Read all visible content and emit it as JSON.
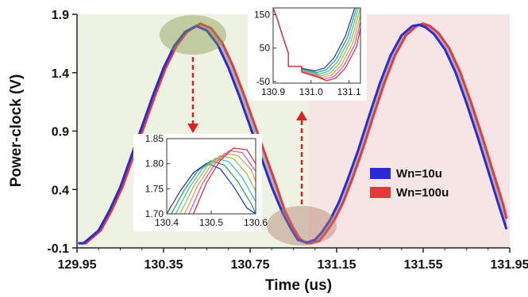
{
  "chart_data": [
    {
      "type": "line",
      "xlabel": "Time (us)",
      "ylabel": "Power-clock (V)",
      "xlim": [
        129.95,
        131.95
      ],
      "ylim": [
        -0.1,
        1.9
      ],
      "xticks": [
        "129.95",
        "130.35",
        "130.75",
        "131.15",
        "131.55",
        "131.95"
      ],
      "yticks": [
        "-0.1",
        "0.4",
        "0.9",
        "1.4",
        "1.9"
      ],
      "background_regions": [
        {
          "x": [
            129.95,
            131.02
          ],
          "color": "#eef2e3"
        },
        {
          "x": [
            131.02,
            131.95
          ],
          "color": "#f7e4e4"
        }
      ],
      "legend": {
        "placement": "center-right"
      },
      "series": [
        {
          "name": "Wn=10u",
          "color": "#2a2ad6",
          "x": [
            129.955,
            129.98,
            130.05,
            130.1,
            130.15,
            130.2,
            130.25,
            130.3,
            130.35,
            130.4,
            130.45,
            130.5,
            130.55,
            130.6,
            130.65,
            130.7,
            130.75,
            130.8,
            130.85,
            130.9,
            130.94,
            130.97,
            131.0,
            131.02,
            131.05,
            131.08,
            131.12,
            131.16,
            131.2,
            131.25,
            131.3,
            131.35,
            131.4,
            131.45,
            131.5,
            131.53,
            131.56,
            131.6,
            131.65,
            131.7,
            131.75,
            131.8,
            131.85,
            131.9,
            131.935
          ],
          "values": [
            -0.06,
            -0.06,
            0.05,
            0.22,
            0.42,
            0.68,
            0.94,
            1.2,
            1.44,
            1.63,
            1.75,
            1.8,
            1.76,
            1.64,
            1.44,
            1.2,
            0.94,
            0.68,
            0.42,
            0.2,
            0.06,
            -0.03,
            -0.05,
            -0.05,
            -0.03,
            0.03,
            0.14,
            0.29,
            0.48,
            0.74,
            1.03,
            1.31,
            1.55,
            1.72,
            1.8,
            1.81,
            1.79,
            1.73,
            1.6,
            1.4,
            1.14,
            0.86,
            0.56,
            0.26,
            0.06
          ]
        },
        {
          "name": "Wn=100u",
          "color": "#e23a3a",
          "x": [
            129.955,
            129.99,
            130.06,
            130.11,
            130.16,
            130.21,
            130.26,
            130.31,
            130.36,
            130.41,
            130.46,
            130.52,
            130.57,
            130.62,
            130.67,
            130.72,
            130.77,
            130.82,
            130.87,
            130.91,
            130.95,
            130.98,
            131.01,
            131.03,
            131.07,
            131.1,
            131.14,
            131.18,
            131.22,
            131.27,
            131.32,
            131.37,
            131.42,
            131.47,
            131.52,
            131.55,
            131.58,
            131.62,
            131.67,
            131.72,
            131.77,
            131.82,
            131.87,
            131.92,
            131.935
          ],
          "values": [
            -0.06,
            -0.06,
            0.05,
            0.22,
            0.42,
            0.68,
            0.94,
            1.2,
            1.44,
            1.63,
            1.75,
            1.82,
            1.78,
            1.66,
            1.46,
            1.22,
            0.96,
            0.7,
            0.44,
            0.22,
            0.07,
            -0.02,
            -0.06,
            -0.06,
            -0.04,
            0.03,
            0.14,
            0.29,
            0.48,
            0.74,
            1.03,
            1.31,
            1.55,
            1.72,
            1.8,
            1.82,
            1.8,
            1.74,
            1.61,
            1.41,
            1.15,
            0.87,
            0.57,
            0.27,
            0.15
          ]
        }
      ]
    },
    {
      "type": "line",
      "xlim": [
        130.4,
        130.6
      ],
      "ylim": [
        1.7,
        1.85
      ],
      "xticks": [
        "130.4",
        "130.5",
        "130.6"
      ],
      "yticks": [
        "1.70",
        "1.75",
        "1.80",
        "1.85"
      ],
      "curves": [
        {
          "color": "#1a2bd6",
          "x": [
            130.4,
            130.43,
            130.46,
            130.49,
            130.52,
            130.55,
            130.58,
            130.6
          ],
          "values": [
            1.7,
            1.745,
            1.782,
            1.801,
            1.79,
            1.755,
            1.712,
            1.7
          ]
        },
        {
          "color": "#1aa83a",
          "x": [
            130.41,
            130.44,
            130.47,
            130.5,
            130.53,
            130.56,
            130.59,
            130.6
          ],
          "values": [
            1.7,
            1.748,
            1.786,
            1.806,
            1.797,
            1.764,
            1.72,
            1.7
          ]
        },
        {
          "color": "#38b8d8",
          "x": [
            130.42,
            130.45,
            130.48,
            130.51,
            130.54,
            130.57,
            130.6
          ],
          "values": [
            1.7,
            1.751,
            1.79,
            1.811,
            1.804,
            1.772,
            1.725
          ]
        },
        {
          "color": "#9bbc3a",
          "x": [
            130.43,
            130.46,
            130.49,
            130.52,
            130.55,
            130.58,
            130.6
          ],
          "values": [
            1.7,
            1.754,
            1.794,
            1.816,
            1.81,
            1.78,
            1.745
          ]
        },
        {
          "color": "#e89a3a",
          "x": [
            130.44,
            130.47,
            130.5,
            130.53,
            130.56,
            130.59,
            130.6
          ],
          "values": [
            1.7,
            1.757,
            1.798,
            1.821,
            1.816,
            1.788,
            1.765
          ]
        },
        {
          "color": "#d64ad0",
          "x": [
            130.45,
            130.48,
            130.51,
            130.54,
            130.57,
            130.6
          ],
          "values": [
            1.7,
            1.76,
            1.802,
            1.826,
            1.822,
            1.785
          ]
        },
        {
          "color": "#d62a2a",
          "x": [
            130.46,
            130.49,
            130.52,
            130.55,
            130.58,
            130.6
          ],
          "values": [
            1.7,
            1.763,
            1.806,
            1.831,
            1.828,
            1.8
          ]
        }
      ]
    },
    {
      "type": "line",
      "xlim": [
        130.9,
        131.13
      ],
      "ylim": [
        -55,
        170
      ],
      "xticks": [
        "130.9",
        "131.0",
        "131.1"
      ],
      "yticks": [
        "150",
        "50",
        "-50"
      ],
      "curves": [
        {
          "color": "#1a2bd6",
          "x": [
            130.9,
            130.91,
            130.925,
            130.94,
            130.94,
            130.975,
            130.975,
            130.99,
            131.01,
            131.035,
            131.06,
            131.09,
            131.115
          ],
          "values": [
            170,
            140,
            85,
            35,
            -5,
            -5,
            -10,
            -14,
            -18,
            -10,
            20,
            85,
            170
          ]
        },
        {
          "color": "#1aa83a",
          "x": [
            130.9,
            130.91,
            130.925,
            130.94,
            130.94,
            130.975,
            130.975,
            130.995,
            131.015,
            131.04,
            131.065,
            131.095,
            131.12
          ],
          "values": [
            170,
            140,
            85,
            35,
            -5,
            -5,
            -12,
            -18,
            -23,
            -15,
            15,
            80,
            170
          ]
        },
        {
          "color": "#38b8d8",
          "x": [
            130.9,
            130.91,
            130.925,
            130.94,
            130.94,
            130.975,
            130.975,
            131.0,
            131.02,
            131.045,
            131.07,
            131.1,
            131.125
          ],
          "values": [
            170,
            140,
            85,
            35,
            -5,
            -5,
            -14,
            -22,
            -28,
            -20,
            10,
            75,
            170
          ]
        },
        {
          "color": "#9bbc3a",
          "x": [
            130.9,
            130.91,
            130.925,
            130.94,
            130.94,
            130.975,
            130.975,
            131.005,
            131.025,
            131.05,
            131.075,
            131.105,
            131.13
          ],
          "values": [
            170,
            140,
            85,
            35,
            -5,
            -5,
            -16,
            -26,
            -33,
            -25,
            5,
            70,
            170
          ]
        },
        {
          "color": "#e89a3a",
          "x": [
            130.9,
            130.91,
            130.925,
            130.94,
            130.94,
            130.975,
            130.975,
            131.01,
            131.03,
            131.055,
            131.08,
            131.11,
            131.13
          ],
          "values": [
            170,
            140,
            85,
            35,
            -5,
            -5,
            -18,
            -30,
            -38,
            -30,
            0,
            65,
            150
          ]
        },
        {
          "color": "#d64ad0",
          "x": [
            130.9,
            130.91,
            130.925,
            130.94,
            130.94,
            130.975,
            130.975,
            131.015,
            131.035,
            131.06,
            131.085,
            131.115,
            131.13
          ],
          "values": [
            170,
            140,
            85,
            35,
            -5,
            -5,
            -20,
            -34,
            -43,
            -35,
            -5,
            60,
            130
          ]
        },
        {
          "color": "#d62a2a",
          "x": [
            130.9,
            130.91,
            130.925,
            130.94,
            130.94,
            130.975,
            130.975,
            131.02,
            131.04,
            131.065,
            131.09,
            131.12,
            131.13
          ],
          "values": [
            170,
            140,
            85,
            35,
            -5,
            -5,
            -22,
            -38,
            -48,
            -40,
            -10,
            55,
            110
          ]
        }
      ]
    }
  ]
}
